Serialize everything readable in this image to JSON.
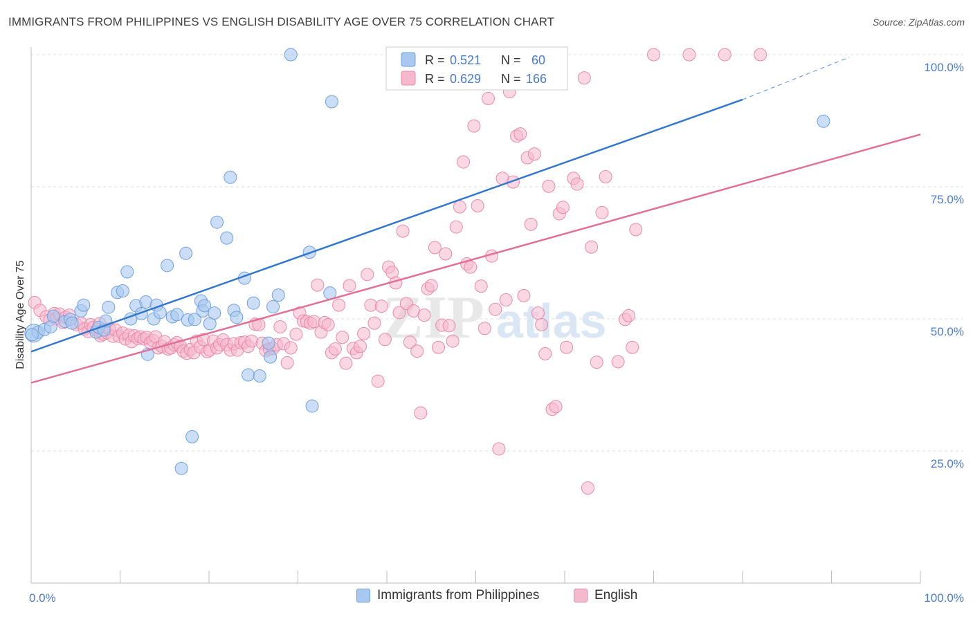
{
  "title": "IMMIGRANTS FROM PHILIPPINES VS ENGLISH DISABILITY AGE OVER 75 CORRELATION CHART",
  "source": "Source: ZipAtlas.com",
  "watermark": {
    "zip": "ZIP",
    "atlas": "atlas"
  },
  "colors": {
    "blue_fill": "#a9c8f0",
    "blue_stroke": "#6f9fdc",
    "blue_line": "#3377cc",
    "pink_fill": "#f6b8cc",
    "pink_stroke": "#e889a8",
    "pink_line": "#e07098",
    "grid": "#dddddd",
    "tick_text": "#4a7cc7"
  },
  "stats_legend": [
    {
      "r_label": "R =",
      "r_value": "0.521",
      "n_label": "N =",
      "n_value": "60"
    },
    {
      "r_label": "R =",
      "r_value": "0.629",
      "n_label": "N =",
      "n_value": "166"
    }
  ],
  "bottom_legend": [
    "Immigrants from Philippines",
    "English"
  ],
  "chart_data": {
    "type": "scatter",
    "xlabel": "",
    "ylabel": "Disability Age Over 75",
    "xlim": [
      0,
      100
    ],
    "ylim": [
      0,
      100
    ],
    "x_tick_labels": [
      "0.0%",
      "100.0%"
    ],
    "y_ticks": [
      25,
      50,
      75,
      100
    ],
    "y_tick_labels": [
      "25.0%",
      "50.0%",
      "75.0%",
      "100.0%"
    ],
    "grid": true,
    "legend_position": "top-center",
    "series": [
      {
        "name": "Immigrants from Philippines",
        "trend": {
          "x0": 0,
          "y0": 43.8,
          "x1": 80,
          "y1": 91.5,
          "dashed_to_x": 92,
          "dashed_to_y": 99.5
        },
        "points": [
          [
            0.3,
            47.3
          ],
          [
            0.8,
            47.5
          ],
          [
            1.5,
            48.0
          ],
          [
            2.2,
            48.5
          ],
          [
            2.5,
            50.5
          ],
          [
            3.8,
            49.5
          ],
          [
            4.4,
            49.9
          ],
          [
            4.6,
            49.2
          ],
          [
            5.6,
            51.5
          ],
          [
            5.9,
            52.6
          ],
          [
            7.3,
            47.5
          ],
          [
            7.6,
            48.4
          ],
          [
            8.2,
            47.9
          ],
          [
            8.4,
            49.6
          ],
          [
            8.7,
            52.2
          ],
          [
            9.7,
            55.0
          ],
          [
            10.3,
            55.3
          ],
          [
            10.8,
            58.9
          ],
          [
            11.2,
            50.0
          ],
          [
            11.8,
            52.5
          ],
          [
            12.4,
            51.0
          ],
          [
            12.9,
            53.2
          ],
          [
            13.1,
            43.3
          ],
          [
            13.8,
            50.0
          ],
          [
            14.1,
            52.6
          ],
          [
            14.5,
            51.2
          ],
          [
            15.3,
            60.1
          ],
          [
            15.9,
            50.4
          ],
          [
            16.4,
            50.8
          ],
          [
            16.9,
            21.7
          ],
          [
            17.4,
            62.4
          ],
          [
            17.6,
            49.8
          ],
          [
            18.1,
            27.7
          ],
          [
            18.4,
            49.9
          ],
          [
            19.1,
            53.4
          ],
          [
            19.3,
            51.5
          ],
          [
            19.5,
            52.5
          ],
          [
            20.1,
            49.1
          ],
          [
            20.6,
            51.1
          ],
          [
            20.9,
            68.3
          ],
          [
            22.0,
            65.3
          ],
          [
            22.4,
            76.8
          ],
          [
            22.8,
            51.6
          ],
          [
            23.1,
            50.3
          ],
          [
            24.0,
            57.7
          ],
          [
            24.4,
            39.4
          ],
          [
            25.0,
            53.0
          ],
          [
            25.7,
            39.2
          ],
          [
            26.7,
            45.4
          ],
          [
            26.9,
            42.8
          ],
          [
            27.2,
            52.3
          ],
          [
            27.8,
            54.5
          ],
          [
            29.2,
            100.0
          ],
          [
            31.3,
            62.6
          ],
          [
            31.6,
            33.5
          ],
          [
            33.6,
            54.9
          ],
          [
            33.8,
            91.1
          ],
          [
            41.9,
            100.0
          ],
          [
            89.1,
            87.4
          ],
          [
            0.1,
            47.0
          ]
        ],
        "point_sizes": [
          14,
          10,
          10,
          10,
          10,
          10,
          10,
          10,
          10,
          10,
          10,
          10,
          10,
          10,
          10,
          10,
          10,
          10,
          10,
          10,
          10,
          10,
          10,
          10,
          10,
          10,
          10,
          10,
          10,
          10,
          10,
          10,
          10,
          10,
          10,
          10,
          10,
          10,
          10,
          10,
          10,
          10,
          10,
          10,
          10,
          10,
          10,
          10,
          10,
          10,
          10,
          10,
          10,
          10,
          10,
          10,
          10,
          10,
          10,
          10
        ]
      },
      {
        "name": "English",
        "trend": {
          "x0": 0,
          "y0": 37.9,
          "x1": 100,
          "y1": 84.9
        },
        "points": [
          [
            0.4,
            53.1
          ],
          [
            1.0,
            51.6
          ],
          [
            1.7,
            50.4
          ],
          [
            2.1,
            49.8
          ],
          [
            2.6,
            51.0
          ],
          [
            2.8,
            50.1
          ],
          [
            3.2,
            50.9
          ],
          [
            3.6,
            49.3
          ],
          [
            3.9,
            50.3
          ],
          [
            4.3,
            50.7
          ],
          [
            5.1,
            48.9
          ],
          [
            5.6,
            49.2
          ],
          [
            6.0,
            48.1
          ],
          [
            6.4,
            47.6
          ],
          [
            6.7,
            48.9
          ],
          [
            7.0,
            48.4
          ],
          [
            7.4,
            47.9
          ],
          [
            7.7,
            49.1
          ],
          [
            7.8,
            46.8
          ],
          [
            8.1,
            47.1
          ],
          [
            8.5,
            47.4
          ],
          [
            8.8,
            48.1
          ],
          [
            9.2,
            46.7
          ],
          [
            9.5,
            47.9
          ],
          [
            9.9,
            46.7
          ],
          [
            10.3,
            47.3
          ],
          [
            10.6,
            46.2
          ],
          [
            11.0,
            46.9
          ],
          [
            11.3,
            45.7
          ],
          [
            11.6,
            46.8
          ],
          [
            12.0,
            46.3
          ],
          [
            12.3,
            46.6
          ],
          [
            12.7,
            46.2
          ],
          [
            13.0,
            46.5
          ],
          [
            13.4,
            45.5
          ],
          [
            13.7,
            45.9
          ],
          [
            14.0,
            46.6
          ],
          [
            14.3,
            44.5
          ],
          [
            14.7,
            44.8
          ],
          [
            15.0,
            45.7
          ],
          [
            15.4,
            44.3
          ],
          [
            15.7,
            44.5
          ],
          [
            16.1,
            45.1
          ],
          [
            16.4,
            45.5
          ],
          [
            16.8,
            44.8
          ],
          [
            17.1,
            43.9
          ],
          [
            17.5,
            43.5
          ],
          [
            17.9,
            44.2
          ],
          [
            18.3,
            43.6
          ],
          [
            18.6,
            45.8
          ],
          [
            19.0,
            44.7
          ],
          [
            19.4,
            46.1
          ],
          [
            19.8,
            43.8
          ],
          [
            20.1,
            44.1
          ],
          [
            20.5,
            45.8
          ],
          [
            20.9,
            44.5
          ],
          [
            21.2,
            45.1
          ],
          [
            21.6,
            46.0
          ],
          [
            22.0,
            45.1
          ],
          [
            22.4,
            44.1
          ],
          [
            22.8,
            45.3
          ],
          [
            23.2,
            44.1
          ],
          [
            23.6,
            45.5
          ],
          [
            24.0,
            45.6
          ],
          [
            24.4,
            44.8
          ],
          [
            24.8,
            45.8
          ],
          [
            25.2,
            49.0
          ],
          [
            25.6,
            48.9
          ],
          [
            26.0,
            45.4
          ],
          [
            26.4,
            44.0
          ],
          [
            26.8,
            44.3
          ],
          [
            27.2,
            44.4
          ],
          [
            27.6,
            45.1
          ],
          [
            28.0,
            48.5
          ],
          [
            28.4,
            45.3
          ],
          [
            28.8,
            41.7
          ],
          [
            29.2,
            44.5
          ],
          [
            29.8,
            47.1
          ],
          [
            30.2,
            51.1
          ],
          [
            30.6,
            49.6
          ],
          [
            31.0,
            49.5
          ],
          [
            31.4,
            49.2
          ],
          [
            31.8,
            49.5
          ],
          [
            32.2,
            56.4
          ],
          [
            32.6,
            47.5
          ],
          [
            33.0,
            49.3
          ],
          [
            33.4,
            48.9
          ],
          [
            33.8,
            43.6
          ],
          [
            34.2,
            44.3
          ],
          [
            34.6,
            52.6
          ],
          [
            35.0,
            46.5
          ],
          [
            35.4,
            41.6
          ],
          [
            35.8,
            56.3
          ],
          [
            36.2,
            44.4
          ],
          [
            36.6,
            43.6
          ],
          [
            37.0,
            44.8
          ],
          [
            37.4,
            47.2
          ],
          [
            37.8,
            58.4
          ],
          [
            38.2,
            52.6
          ],
          [
            38.6,
            49.2
          ],
          [
            39.0,
            38.2
          ],
          [
            39.4,
            52.4
          ],
          [
            39.8,
            46.1
          ],
          [
            40.2,
            59.8
          ],
          [
            40.6,
            58.8
          ],
          [
            41.0,
            56.8
          ],
          [
            41.4,
            51.2
          ],
          [
            41.8,
            66.6
          ],
          [
            42.2,
            52.9
          ],
          [
            42.6,
            45.6
          ],
          [
            43.0,
            51.5
          ],
          [
            43.4,
            43.9
          ],
          [
            43.8,
            32.2
          ],
          [
            44.2,
            50.7
          ],
          [
            44.6,
            55.7
          ],
          [
            45.0,
            56.3
          ],
          [
            45.4,
            63.5
          ],
          [
            45.8,
            44.6
          ],
          [
            46.2,
            48.8
          ],
          [
            46.6,
            62.3
          ],
          [
            47.0,
            48.7
          ],
          [
            47.4,
            45.8
          ],
          [
            47.8,
            67.4
          ],
          [
            48.2,
            71.2
          ],
          [
            48.6,
            79.7
          ],
          [
            49.0,
            60.4
          ],
          [
            49.4,
            59.8
          ],
          [
            49.8,
            86.5
          ],
          [
            50.2,
            71.4
          ],
          [
            50.6,
            56.2
          ],
          [
            51.0,
            48.2
          ],
          [
            51.4,
            91.7
          ],
          [
            51.8,
            61.9
          ],
          [
            52.2,
            51.8
          ],
          [
            52.6,
            25.4
          ],
          [
            53.0,
            76.6
          ],
          [
            53.4,
            53.6
          ],
          [
            53.8,
            93.0
          ],
          [
            54.2,
            75.9
          ],
          [
            54.6,
            84.6
          ],
          [
            55.0,
            85.0
          ],
          [
            55.4,
            54.4
          ],
          [
            55.8,
            80.5
          ],
          [
            56.2,
            67.9
          ],
          [
            56.6,
            81.2
          ],
          [
            57.0,
            51.1
          ],
          [
            57.4,
            48.9
          ],
          [
            57.8,
            43.4
          ],
          [
            58.2,
            75.1
          ],
          [
            58.6,
            32.9
          ],
          [
            59.0,
            33.4
          ],
          [
            59.4,
            69.9
          ],
          [
            59.8,
            71.1
          ],
          [
            60.2,
            44.6
          ],
          [
            61.0,
            76.6
          ],
          [
            61.4,
            75.5
          ],
          [
            62.2,
            95.6
          ],
          [
            62.6,
            18.0
          ],
          [
            63.0,
            63.6
          ],
          [
            63.6,
            41.8
          ],
          [
            64.2,
            70.1
          ],
          [
            64.6,
            76.9
          ],
          [
            66.0,
            41.9
          ],
          [
            66.8,
            49.9
          ],
          [
            67.2,
            50.6
          ],
          [
            67.6,
            44.6
          ],
          [
            68.0,
            66.9
          ],
          [
            70.0,
            100.0
          ],
          [
            74.0,
            100.0
          ],
          [
            78.0,
            100.0
          ],
          [
            82.0,
            100.0
          ]
        ]
      }
    ]
  }
}
